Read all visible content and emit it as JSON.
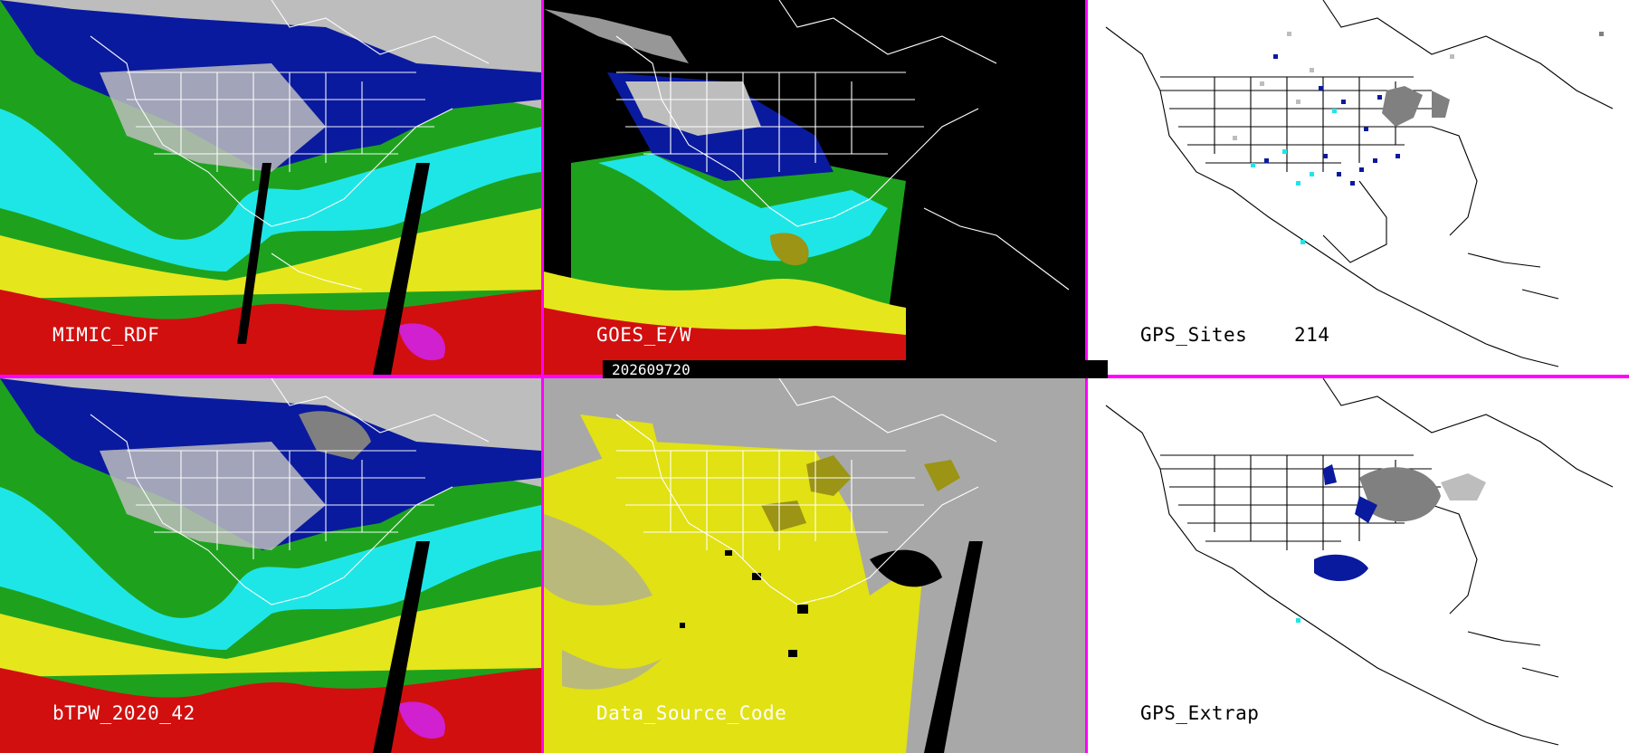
{
  "timestamp": "202609720",
  "panels": [
    {
      "id": "mimic",
      "label": "MIMIC_RDF"
    },
    {
      "id": "goes",
      "label": "GOES_E/W"
    },
    {
      "id": "gps-sites",
      "label": "GPS_Sites",
      "count": "214"
    },
    {
      "id": "btpw",
      "label": "bTPW_2020_42"
    },
    {
      "id": "dsc",
      "label": "Data_Source_Code"
    },
    {
      "id": "gps-extrap",
      "label": "GPS_Extrap"
    }
  ],
  "colors": {
    "divider": "#ff00ff",
    "gray": "#bdbdbd",
    "blue": "#0a1a9e",
    "cyan": "#1fe6e6",
    "green": "#1ea21e",
    "yellow": "#e6e61c",
    "red": "#d10f0f",
    "magenta": "#d020d0",
    "olive": "#9b9414",
    "dsc_gray": "#a8a8a8",
    "dsc_yellow": "#e1e114"
  }
}
